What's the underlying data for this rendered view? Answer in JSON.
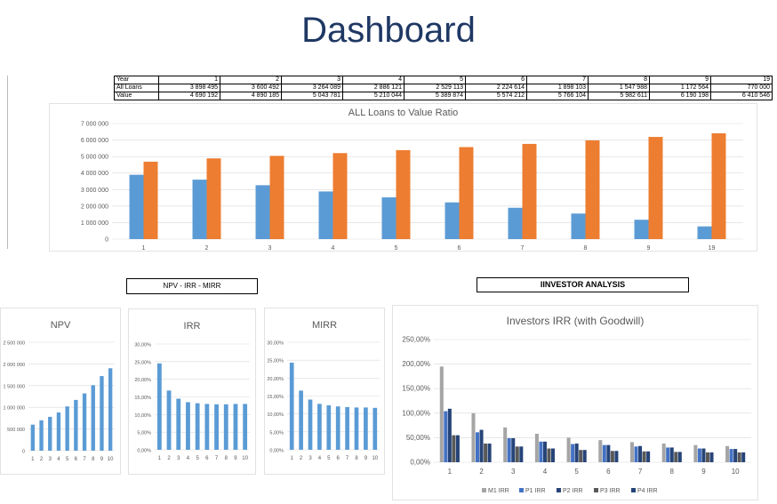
{
  "page_title": "Dashboard",
  "table": {
    "rows": [
      {
        "label": "Year",
        "values": [
          "1",
          "2",
          "3",
          "4",
          "5",
          "6",
          "7",
          "8",
          "9",
          "19"
        ]
      },
      {
        "label": "All Loans",
        "values": [
          "3 898 495",
          "3 600 492",
          "3 264 089",
          "2 886 121",
          "2 529 113",
          "2 224 614",
          "1 898 103",
          "1 547 988",
          "1 172 564",
          "770 000"
        ]
      },
      {
        "label": "Value",
        "values": [
          "4 690 192",
          "4 890 185",
          "5 043 781",
          "5 210 044",
          "5 389 874",
          "5 574 212",
          "5 766 104",
          "5 982 611",
          "6 190 198",
          "6 410 546"
        ]
      }
    ]
  },
  "section_labels": {
    "npv_irr_mirr": "NPV - IRR - MIRR",
    "investor_analysis": "IINVESTOR ANALYSIS"
  },
  "colors": {
    "blue": "#5b9bd5",
    "orange": "#ed7d31",
    "gray": "#a5a5a5",
    "mid_blue": "#4472c4",
    "dark_gray": "#595959",
    "navy": "#264478",
    "title_blue": "#1f3864"
  },
  "chart_data": [
    {
      "id": "loans",
      "type": "bar",
      "title": "ALL Loans to Value Ratio",
      "categories": [
        "1",
        "2",
        "3",
        "4",
        "5",
        "6",
        "7",
        "8",
        "9",
        "19"
      ],
      "series": [
        {
          "values": [
            3898495,
            3600492,
            3264089,
            2886121,
            2529113,
            2224614,
            1898103,
            1547988,
            1172564,
            770000
          ]
        },
        {
          "values": [
            4690192,
            4890185,
            5043781,
            5210044,
            5389874,
            5574212,
            5766104,
            5982611,
            6190198,
            6410546
          ]
        }
      ],
      "ylim": [
        0,
        7000000
      ],
      "yticks": [
        0,
        1000000,
        2000000,
        3000000,
        4000000,
        5000000,
        6000000,
        7000000
      ],
      "ytick_labels": [
        "0",
        "1 000 000",
        "2 000 000",
        "3 000 000",
        "4 000 000",
        "5 000 000",
        "6 000 000",
        "7 000 000"
      ],
      "grid": true,
      "legend": "none"
    },
    {
      "id": "npv",
      "type": "bar",
      "title": "NPV",
      "categories": [
        "1",
        "2",
        "3",
        "4",
        "5",
        "6",
        "7",
        "8",
        "9",
        "10"
      ],
      "series": [
        {
          "values": [
            600000,
            700000,
            780000,
            880000,
            1020000,
            1170000,
            1320000,
            1510000,
            1720000,
            1900000
          ]
        }
      ],
      "ylim": [
        0,
        2500000
      ],
      "yticks": [
        0,
        500000,
        1000000,
        1500000,
        2000000,
        2500000
      ],
      "ytick_labels": [
        "0",
        "500 000",
        "1 000 000",
        "1 500 000",
        "2 000 000",
        "2 500 000"
      ],
      "grid": true,
      "legend": "none"
    },
    {
      "id": "irr",
      "type": "bar",
      "title": "IRR",
      "categories": [
        "1",
        "2",
        "3",
        "4",
        "5",
        "6",
        "7",
        "8",
        "9",
        "10"
      ],
      "series": [
        {
          "values": [
            24.5,
            16.8,
            14.5,
            13.5,
            13.2,
            13.0,
            12.9,
            12.9,
            13.0,
            13.0
          ]
        }
      ],
      "ylim": [
        0,
        30
      ],
      "yticks": [
        0,
        5,
        10,
        15,
        20,
        25,
        30
      ],
      "ytick_labels": [
        "0,00%",
        "5,00%",
        "10,00%",
        "15,00%",
        "20,00%",
        "25,00%",
        "30,00%"
      ],
      "grid": true,
      "legend": "none"
    },
    {
      "id": "mirr",
      "type": "bar",
      "title": "MIRR",
      "categories": [
        "1",
        "2",
        "3",
        "4",
        "5",
        "6",
        "7",
        "8",
        "9",
        "10"
      ],
      "series": [
        {
          "values": [
            24.3,
            16.5,
            14.0,
            12.8,
            12.4,
            12.1,
            11.9,
            11.8,
            11.8,
            11.7
          ]
        }
      ],
      "ylim": [
        0,
        30
      ],
      "yticks": [
        0,
        5,
        10,
        15,
        20,
        25,
        30
      ],
      "ytick_labels": [
        "0,00%",
        "5,00%",
        "10,00%",
        "15,00%",
        "20,00%",
        "25,00%",
        "30,00%"
      ],
      "grid": true,
      "legend": "none"
    },
    {
      "id": "investors",
      "type": "bar",
      "title": "Investors IRR (with Goodwill)",
      "categories": [
        "1",
        "2",
        "3",
        "4",
        "5",
        "6",
        "7",
        "8",
        "9",
        "10"
      ],
      "series": [
        {
          "name": "M1 IRR",
          "values": [
            195,
            100,
            71,
            58,
            50,
            45,
            41,
            38,
            35,
            33
          ]
        },
        {
          "name": "P1 IRR",
          "values": [
            104,
            61,
            49,
            42,
            37,
            35,
            32,
            30,
            28,
            27
          ]
        },
        {
          "name": "P2 IRR",
          "values": [
            109,
            66,
            49,
            42,
            38,
            35,
            33,
            30,
            28,
            27
          ]
        },
        {
          "name": "P3 IRR",
          "values": [
            55,
            38,
            32,
            28,
            25,
            23,
            22,
            21,
            20,
            20
          ]
        },
        {
          "name": "P4 IRR",
          "values": [
            55,
            38,
            32,
            28,
            25,
            23,
            22,
            21,
            20,
            20
          ]
        }
      ],
      "ylim": [
        0,
        250
      ],
      "yticks": [
        0,
        50,
        100,
        150,
        200,
        250
      ],
      "ytick_labels": [
        "0,00%",
        "50,00%",
        "100,00%",
        "150,00%",
        "200,00%",
        "250,00%"
      ],
      "grid": true,
      "legend": "bottom"
    }
  ]
}
